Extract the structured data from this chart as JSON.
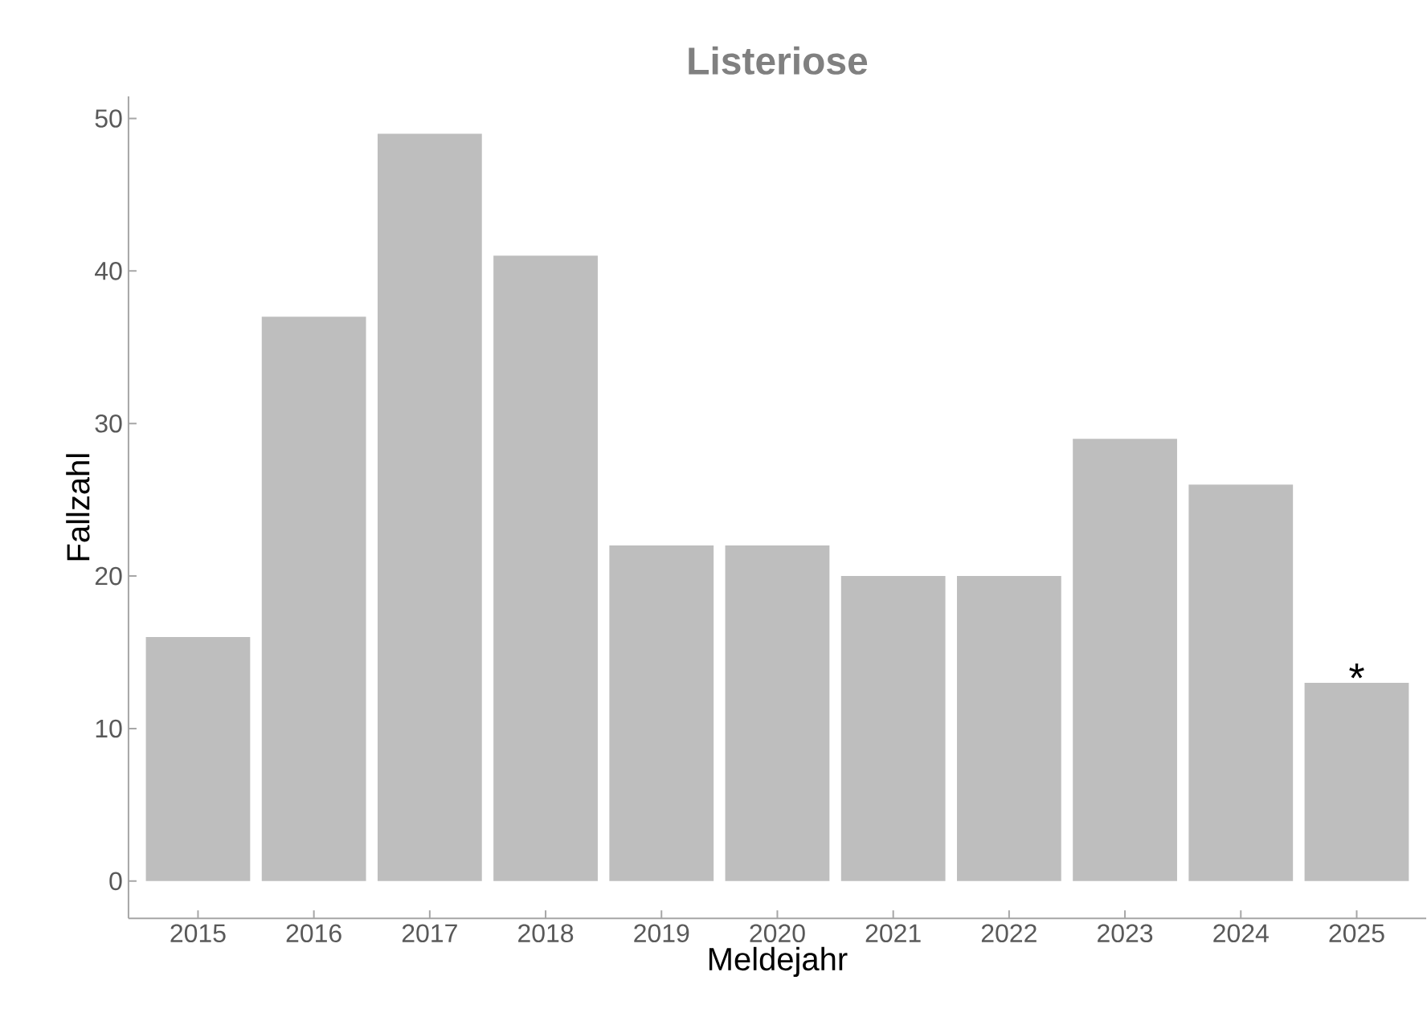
{
  "chart_data": {
    "type": "bar",
    "title": "Listeriose",
    "xlabel": "Meldejahr",
    "ylabel": "Fallzahl",
    "categories": [
      "2015",
      "2016",
      "2017",
      "2018",
      "2019",
      "2020",
      "2021",
      "2022",
      "2023",
      "2024",
      "2025"
    ],
    "values": [
      16,
      37,
      49,
      41,
      22,
      22,
      20,
      20,
      29,
      26,
      13
    ],
    "color": "#bebebe",
    "ylim": [
      -2.45,
      51.45
    ],
    "yticks": [
      0,
      10,
      20,
      30,
      40,
      50
    ],
    "annotations": [
      {
        "text": "*",
        "x": "2025",
        "y": 13
      }
    ],
    "grid": false
  }
}
